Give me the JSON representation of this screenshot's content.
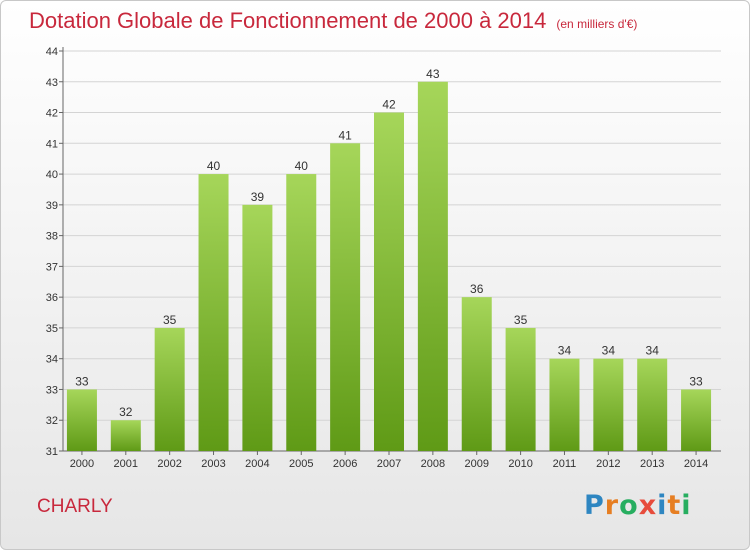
{
  "header": {
    "title": "Dotation Globale de Fonctionnement de 2000 à 2014",
    "unit": "(en milliers d'€)"
  },
  "footer": {
    "place": "CHARLY",
    "brand": "Proxiti"
  },
  "colors": {
    "title": "#c8283c",
    "bar_top": "#a6d65a",
    "bar_bottom": "#5f9a16",
    "grid": "#d4d4d4"
  },
  "chart_data": {
    "type": "bar",
    "categories": [
      "2000",
      "2001",
      "2002",
      "2003",
      "2004",
      "2005",
      "2006",
      "2007",
      "2008",
      "2009",
      "2010",
      "2011",
      "2012",
      "2013",
      "2014"
    ],
    "values": [
      33,
      32,
      35,
      40,
      39,
      40,
      41,
      42,
      43,
      36,
      35,
      34,
      34,
      34,
      33
    ],
    "title": "Dotation Globale de Fonctionnement de 2000 à 2014",
    "subtitle": "(en milliers d'€)",
    "xlabel": "",
    "ylabel": "",
    "ylim": [
      31,
      44
    ],
    "yticks": [
      31,
      32,
      33,
      34,
      35,
      36,
      37,
      38,
      39,
      40,
      41,
      42,
      43,
      44
    ],
    "grid": true,
    "legend": "none"
  }
}
